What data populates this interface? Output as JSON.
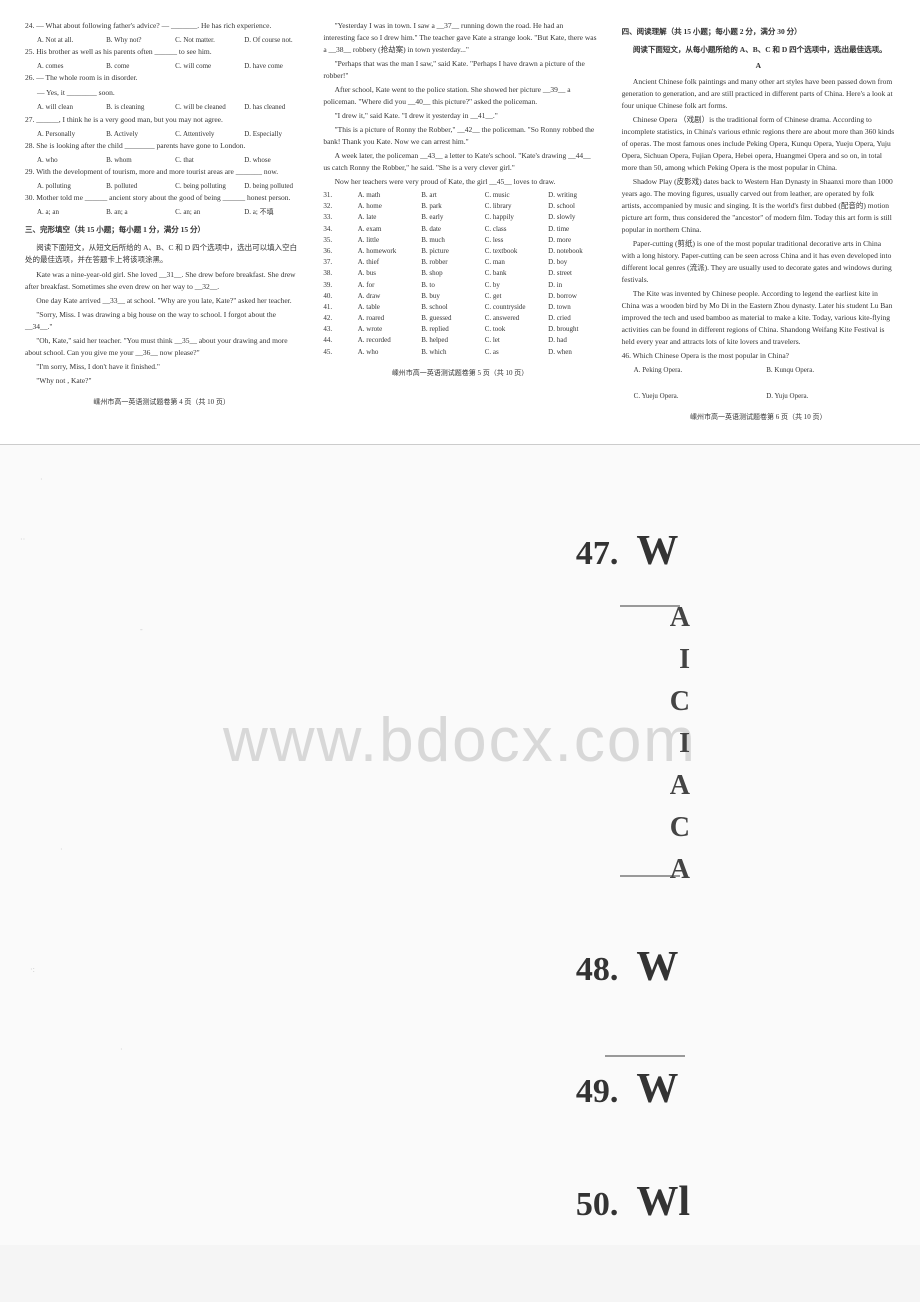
{
  "col1": {
    "q24": {
      "stem": "24. — What about following father's advice?   — _______. He has rich experience.",
      "opts": [
        "A. Not at all.",
        "B. Why not?",
        "C. Not matter.",
        "D. Of course not."
      ]
    },
    "q25": {
      "stem": "25. His brother as well as his parents often ______ to see him.",
      "opts": [
        "A. comes",
        "B. come",
        "C. will come",
        "D. have come"
      ]
    },
    "q26": {
      "stem1": "26. — The whole room is in disorder.",
      "stem2": "— Yes, it ________ soon.",
      "opts": [
        "A. will clean",
        "B. is cleaning",
        "C. will be cleaned",
        "D. has cleaned"
      ]
    },
    "q27": {
      "stem": "27. ______, I think he is a very good man, but you may not agree.",
      "opts": [
        "A. Personally",
        "B. Actively",
        "C. Attentively",
        "D. Especially"
      ]
    },
    "q28": {
      "stem": "28. She is looking after the child ________ parents have gone to London.",
      "opts": [
        "A. who",
        "B. whom",
        "C. that",
        "D. whose"
      ]
    },
    "q29": {
      "stem": "29. With the development of tourism, more and more tourist areas are _______ now.",
      "opts": [
        "A. polluting",
        "B. polluted",
        "C. being polluting",
        "D. being polluted"
      ]
    },
    "q30": {
      "stem": "30. Mother told me ______ ancient story about the good of being ______ honest person.",
      "opts": [
        "A. a; an",
        "B. an; a",
        "C. an; an",
        "D. a; 不填"
      ]
    },
    "section3_title": "三、完形填空（共 15 小题；每小题 1 分，满分 15 分）",
    "section3_instr": "阅读下面短文，从短文后所给的 A、B、C 和 D 四个选项中，选出可以填入空白处的最佳选项，并在答题卡上将该项涂黑。",
    "passage": [
      "Kate was a nine-year-old girl. She loved __31__. She drew before breakfast. She drew after breakfast. Sometimes she even drew on her way to __32__.",
      "One day Kate arrived __33__ at school. \"Why are you late, Kate?\" asked her teacher.",
      "\"Sorry, Miss. I was drawing a big house on the way to school. I forgot about the __34__.\"",
      "\"Oh, Kate,\" said her teacher. \"You must think __35__ about your drawing and more about school. Can you give me your __36__ now please?\"",
      "\"I'm sorry, Miss, I don't have it finished.\"",
      "\"Why not , Kate?\""
    ],
    "footer": "嵊州市高一英语测试题卷第 4 页（共 10 页）"
  },
  "col2": {
    "passage": [
      "\"Yesterday I was in town. I saw a __37__ running down the road. He had an interesting face so I drew him.\" The teacher gave Kate a strange look. \"But Kate, there was a __38__ robbery (抢劫案) in town yesterday...\"",
      "\"Perhaps that was the man I saw,\" said Kate. \"Perhaps I have drawn a picture of the robber!\"",
      "After school, Kate went to the police station. She showed her picture __39__ a policeman. \"Where did you __40__ this picture?\" asked the policeman.",
      "\"I drew it,\" said Kate. \"I drew it yesterday in __41__.\"",
      "\"This is a picture of Ronny the Robber,\" __42__ the policeman. \"So Ronny robbed the bank! Thank you Kate. Now we can arrest him.\"",
      "A week later, the policeman __43__ a letter to Kate's school. \"Kate's drawing __44__ us catch Ronny the Robber,\" he said. \"She is a very clever girl.\"",
      "Now her teachers were very proud of Kate, the girl __45__ loves to draw."
    ],
    "cloze_options": [
      {
        "n": "31",
        "a": "A. math",
        "b": "B. art",
        "c": "C. music",
        "d": "D. writing"
      },
      {
        "n": "32",
        "a": "A. home",
        "b": "B. park",
        "c": "C. library",
        "d": "D. school"
      },
      {
        "n": "33",
        "a": "A. late",
        "b": "B. early",
        "c": "C. happily",
        "d": "D. slowly"
      },
      {
        "n": "34",
        "a": "A. exam",
        "b": "B. date",
        "c": "C. class",
        "d": "D. time"
      },
      {
        "n": "35",
        "a": "A. little",
        "b": "B. much",
        "c": "C. less",
        "d": "D. more"
      },
      {
        "n": "36",
        "a": "A. homework",
        "b": "B. picture",
        "c": "C. textbook",
        "d": "D. notebook"
      },
      {
        "n": "37",
        "a": "A. thief",
        "b": "B. robber",
        "c": "C. man",
        "d": "D. boy"
      },
      {
        "n": "38",
        "a": "A. bus",
        "b": "B. shop",
        "c": "C. bank",
        "d": "D. street"
      },
      {
        "n": "39",
        "a": "A. for",
        "b": "B. to",
        "c": "C. by",
        "d": "D. in"
      },
      {
        "n": "40",
        "a": "A. draw",
        "b": "B. buy",
        "c": "C. get",
        "d": "D. borrow"
      },
      {
        "n": "41",
        "a": "A. table",
        "b": "B. school",
        "c": "C. countryside",
        "d": "D. town"
      },
      {
        "n": "42",
        "a": "A. roared",
        "b": "B. guessed",
        "c": "C. answered",
        "d": "D. cried"
      },
      {
        "n": "43",
        "a": "A. wrote",
        "b": "B. replied",
        "c": "C. took",
        "d": "D. brought"
      },
      {
        "n": "44",
        "a": "A. recorded",
        "b": "B. helped",
        "c": "C. let",
        "d": "D. had"
      },
      {
        "n": "45",
        "a": "A. who",
        "b": "B. which",
        "c": "C. as",
        "d": "D. when"
      }
    ],
    "footer": "嵊州市高一英语测试题卷第 5 页（共 10 页）"
  },
  "col3": {
    "section4_title": "四、阅读理解（共 15 小题；每小题 2 分，满分 30 分）",
    "section4_instr": "阅读下面短文，从每小题所给的 A、B、C 和 D 四个选项中，选出最佳选项。",
    "heading_a": "A",
    "passage": [
      "Ancient Chinese folk paintings and many other art styles have been passed down from generation to generation, and are still practiced in different parts of China. Here's a look at four unique Chinese folk art forms.",
      "Chinese Opera （戏剧）is the traditional form of Chinese drama. According to incomplete statistics, in China's various ethnic regions there are about more than 360 kinds of operas. The most famous ones include Peking Opera, Kunqu Opera, Yueju Opera, Yuju Opera, Sichuan Opera, Fujian Opera, Hebei opera, Huangmei Opera and so on, in total more than 50, among which Peking Opera is the most popular in China.",
      "Shadow Play (皮影戏) dates back to Western Han Dynasty in Shaanxi more than 1000 years ago. The moving figures, usually carved out from leather, are operated by folk artists, accompanied by music and singing. It is the world's first dubbed (配音的) motion picture art form, thus considered the \"ancestor\" of modern film. Today this art form is still popular in northern China.",
      "Paper-cutting (剪纸) is one of the most popular traditional decorative arts in China with a long history. Paper-cutting can be seen across China and it has even developed into different local genres (流派). They are usually used to decorate gates and windows during festivals.",
      "The Kite was invented by Chinese people. According to legend the earliest kite in China was a wooden bird by Mo Di in the Eastern Zhou dynasty. Later his student Lu Ban improved the tech and used bamboo as material to make a kite. Today, various kite-flying activities can be found in different regions of China. Shandong Weifang Kite Festival is held every year and attracts lots of kite lovers and travelers."
    ],
    "q46": {
      "stem": "46. Which Chinese Opera is the most popular in China?",
      "opts": [
        "A. Peking Opera.",
        "B. Kunqu Opera.",
        "C. Yueju Opera.",
        "D. Yuju Opera."
      ]
    },
    "footer": "嵊州市高一英语测试题卷第 6 页（共 10 页）"
  },
  "watermark_text": "www.bdocx.com",
  "answers": [
    {
      "num": "47.",
      "letter": "W"
    },
    {
      "num": "48.",
      "letter": "W"
    },
    {
      "num": "49.",
      "letter": "W"
    },
    {
      "num": "50.",
      "letter": "Wl"
    }
  ],
  "partial_marks": [
    "A",
    "I",
    "C",
    "I",
    "A",
    "C",
    "A"
  ],
  "colors": {
    "text": "#333333",
    "bg": "#f5f5f5",
    "watermark": "#d8d8d8",
    "pale": "#cccccc"
  }
}
